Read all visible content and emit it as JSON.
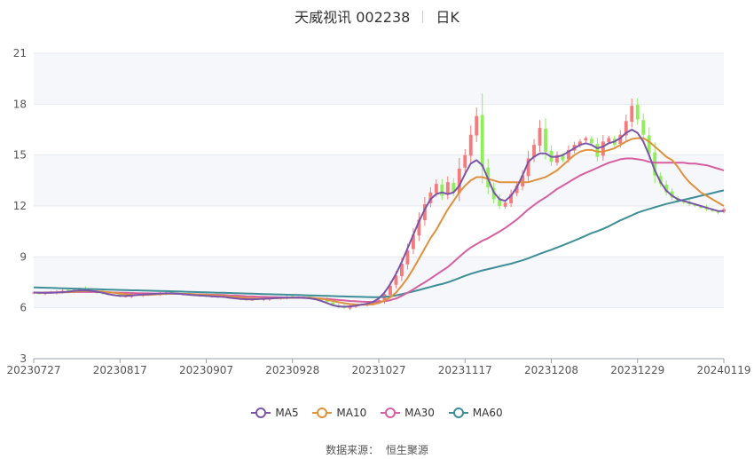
{
  "header": {
    "stock": "天威视讯 002238",
    "period": "日K"
  },
  "source": {
    "label": "数据来源：",
    "name": "恒生聚源"
  },
  "colors": {
    "up": "#f47b7b",
    "down": "#90ee5a",
    "MA5": "#7a55a8",
    "MA10": "#e0913d",
    "MA30": "#d65fa0",
    "MA60": "#3e8e98",
    "band": "#f6f7fb",
    "grid": "#e6e9f0"
  },
  "chart_data": {
    "type": "candlestick",
    "y_ticks": [
      3,
      6,
      9,
      12,
      15,
      18,
      21
    ],
    "ylim": [
      3,
      21
    ],
    "x_tick_labels": [
      "20230727",
      "20230817",
      "20230907",
      "20230928",
      "20231027",
      "20231117",
      "20231208",
      "20231229",
      "20240119"
    ],
    "x_tick_index": [
      0,
      15,
      30,
      45,
      60,
      75,
      90,
      105,
      120
    ],
    "n_days": 121,
    "grid": true,
    "legend_position": "bottom",
    "legend": [
      "MA5",
      "MA10",
      "MA30",
      "MA60"
    ],
    "close_series": [
      6.9,
      6.85,
      6.88,
      6.9,
      6.95,
      7.0,
      6.98,
      7.05,
      7.1,
      7.02,
      6.95,
      6.9,
      6.85,
      6.8,
      6.75,
      6.7,
      6.68,
      6.72,
      6.75,
      6.8,
      6.78,
      6.82,
      6.85,
      6.88,
      6.86,
      6.82,
      6.8,
      6.78,
      6.75,
      6.72,
      6.7,
      6.68,
      6.66,
      6.64,
      6.6,
      6.55,
      6.52,
      6.5,
      6.48,
      6.5,
      6.52,
      6.55,
      6.58,
      6.6,
      6.62,
      6.64,
      6.62,
      6.6,
      6.58,
      6.55,
      6.45,
      6.35,
      6.2,
      6.05,
      6.0,
      6.1,
      6.15,
      6.2,
      6.25,
      6.3,
      6.45,
      6.8,
      7.3,
      7.9,
      8.6,
      9.4,
      10.3,
      11.2,
      12.1,
      12.8,
      13.3,
      12.6,
      13.4,
      12.8,
      14.2,
      15.0,
      16.2,
      17.3,
      14.3,
      13.1,
      12.4,
      12.0,
      12.2,
      12.7,
      13.2,
      13.8,
      14.8,
      15.6,
      16.6,
      15.2,
      14.6,
      15.0,
      14.7,
      15.3,
      15.6,
      15.8,
      16.0,
      15.7,
      14.9,
      15.8,
      16.0,
      15.6,
      16.2,
      17.0,
      17.9,
      17.1,
      16.2,
      15.1,
      13.8,
      13.3,
      12.8,
      12.5,
      12.3,
      12.2,
      12.1,
      12.0,
      11.9,
      11.8,
      11.7,
      11.6,
      11.8
    ],
    "MA5": [
      6.9,
      6.88,
      6.88,
      6.89,
      6.9,
      6.92,
      6.95,
      7.0,
      7.02,
      7.02,
      7.0,
      6.95,
      6.88,
      6.8,
      6.74,
      6.7,
      6.7,
      6.72,
      6.75,
      6.78,
      6.8,
      6.82,
      6.84,
      6.85,
      6.85,
      6.83,
      6.8,
      6.77,
      6.74,
      6.72,
      6.7,
      6.68,
      6.66,
      6.64,
      6.6,
      6.56,
      6.52,
      6.5,
      6.5,
      6.51,
      6.53,
      6.55,
      6.57,
      6.59,
      6.6,
      6.6,
      6.6,
      6.59,
      6.56,
      6.5,
      6.4,
      6.28,
      6.15,
      6.08,
      6.06,
      6.08,
      6.12,
      6.18,
      6.24,
      6.35,
      6.55,
      6.9,
      7.4,
      8.0,
      8.7,
      9.5,
      10.3,
      11.1,
      11.8,
      12.4,
      12.7,
      12.8,
      12.7,
      12.8,
      13.2,
      13.9,
      14.5,
      14.7,
      14.4,
      13.6,
      12.8,
      12.4,
      12.3,
      12.6,
      13.1,
      13.8,
      14.6,
      14.9,
      15.1,
      15.1,
      14.9,
      14.9,
      15.0,
      15.2,
      15.4,
      15.6,
      15.7,
      15.6,
      15.4,
      15.5,
      15.7,
      15.8,
      16.0,
      16.3,
      16.5,
      16.3,
      15.8,
      15.0,
      14.1,
      13.4,
      12.9,
      12.6,
      12.4,
      12.3,
      12.2,
      12.1,
      12.0,
      11.9,
      11.8,
      11.7,
      11.7
    ],
    "MA10": [
      6.9,
      6.89,
      6.89,
      6.89,
      6.9,
      6.91,
      6.93,
      6.95,
      6.97,
      6.98,
      6.98,
      6.97,
      6.95,
      6.92,
      6.88,
      6.84,
      6.8,
      6.77,
      6.75,
      6.75,
      6.76,
      6.78,
      6.8,
      6.82,
      6.83,
      6.83,
      6.82,
      6.81,
      6.8,
      6.78,
      6.76,
      6.74,
      6.72,
      6.7,
      6.67,
      6.64,
      6.61,
      6.58,
      6.56,
      6.55,
      6.55,
      6.55,
      6.56,
      6.57,
      6.58,
      6.59,
      6.6,
      6.6,
      6.59,
      6.57,
      6.53,
      6.47,
      6.4,
      6.33,
      6.27,
      6.22,
      6.19,
      6.18,
      6.18,
      6.2,
      6.28,
      6.42,
      6.62,
      6.9,
      7.3,
      7.75,
      8.3,
      8.9,
      9.5,
      10.1,
      10.6,
      11.2,
      11.8,
      12.3,
      12.8,
      13.2,
      13.5,
      13.7,
      13.7,
      13.6,
      13.5,
      13.4,
      13.4,
      13.4,
      13.4,
      13.4,
      13.4,
      13.5,
      13.6,
      13.7,
      13.9,
      14.1,
      14.4,
      14.7,
      15.0,
      15.2,
      15.3,
      15.3,
      15.2,
      15.2,
      15.3,
      15.4,
      15.6,
      15.8,
      15.95,
      16.0,
      16.0,
      15.8,
      15.5,
      15.2,
      14.9,
      14.7,
      14.3,
      13.8,
      13.4,
      13.1,
      12.8,
      12.6,
      12.4,
      12.2,
      12.0
    ],
    "MA30": [
      6.9,
      6.9,
      6.9,
      6.91,
      6.91,
      6.92,
      6.92,
      6.93,
      6.93,
      6.93,
      6.93,
      6.93,
      6.92,
      6.91,
      6.9,
      6.89,
      6.88,
      6.87,
      6.86,
      6.85,
      6.85,
      6.84,
      6.84,
      6.83,
      6.83,
      6.82,
      6.82,
      6.81,
      6.8,
      6.79,
      6.78,
      6.77,
      6.76,
      6.75,
      6.73,
      6.72,
      6.7,
      6.68,
      6.67,
      6.65,
      6.64,
      6.63,
      6.62,
      6.61,
      6.6,
      6.6,
      6.59,
      6.58,
      6.57,
      6.56,
      6.54,
      6.52,
      6.49,
      6.46,
      6.43,
      6.4,
      6.38,
      6.36,
      6.35,
      6.34,
      6.35,
      6.38,
      6.45,
      6.55,
      6.7,
      6.88,
      7.08,
      7.3,
      7.5,
      7.72,
      7.95,
      8.18,
      8.4,
      8.7,
      9.0,
      9.3,
      9.55,
      9.75,
      9.95,
      10.1,
      10.3,
      10.5,
      10.7,
      10.95,
      11.2,
      11.5,
      11.8,
      12.05,
      12.3,
      12.5,
      12.75,
      13.0,
      13.2,
      13.4,
      13.6,
      13.8,
      13.95,
      14.1,
      14.25,
      14.4,
      14.55,
      14.65,
      14.75,
      14.8,
      14.8,
      14.75,
      14.7,
      14.6,
      14.55,
      14.55,
      14.55,
      14.55,
      14.55,
      14.55,
      14.5,
      14.5,
      14.45,
      14.4,
      14.3,
      14.2,
      14.1
    ],
    "MA60": [
      7.2,
      7.19,
      7.18,
      7.17,
      7.16,
      7.15,
      7.14,
      7.13,
      7.12,
      7.11,
      7.1,
      7.09,
      7.08,
      7.07,
      7.06,
      7.05,
      7.04,
      7.03,
      7.03,
      7.02,
      7.01,
      7.0,
      6.99,
      6.98,
      6.97,
      6.96,
      6.95,
      6.94,
      6.93,
      6.92,
      6.91,
      6.9,
      6.89,
      6.88,
      6.87,
      6.86,
      6.85,
      6.84,
      6.83,
      6.82,
      6.81,
      6.8,
      6.79,
      6.78,
      6.77,
      6.76,
      6.75,
      6.74,
      6.73,
      6.72,
      6.71,
      6.7,
      6.69,
      6.68,
      6.67,
      6.66,
      6.65,
      6.64,
      6.63,
      6.62,
      6.62,
      6.64,
      6.68,
      6.73,
      6.8,
      6.88,
      6.96,
      7.05,
      7.14,
      7.23,
      7.32,
      7.4,
      7.5,
      7.62,
      7.75,
      7.88,
      8.0,
      8.1,
      8.2,
      8.28,
      8.36,
      8.44,
      8.52,
      8.6,
      8.7,
      8.8,
      8.92,
      9.05,
      9.18,
      9.3,
      9.42,
      9.55,
      9.68,
      9.82,
      9.96,
      10.1,
      10.25,
      10.4,
      10.52,
      10.65,
      10.8,
      10.98,
      11.15,
      11.3,
      11.45,
      11.6,
      11.72,
      11.82,
      11.92,
      12.02,
      12.12,
      12.2,
      12.28,
      12.36,
      12.44,
      12.52,
      12.6,
      12.68,
      12.76,
      12.84,
      12.92
    ]
  }
}
